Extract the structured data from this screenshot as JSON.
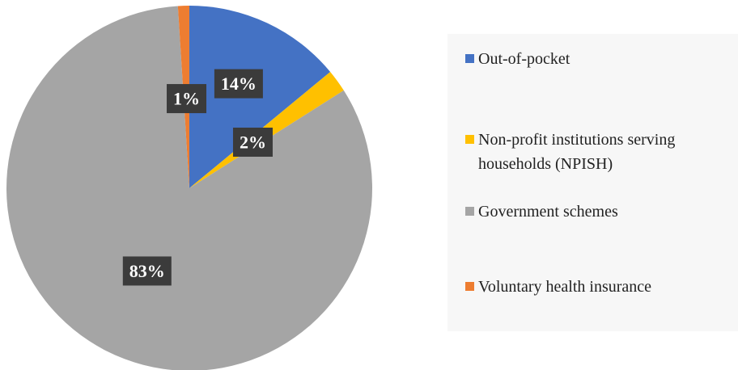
{
  "chart_data": {
    "type": "pie",
    "categories": [
      "Out-of-pocket",
      "Non-profit institutions serving households (NPISH)",
      "Government schemes",
      "Voluntary health insurance"
    ],
    "values": [
      14,
      2,
      83,
      1
    ],
    "value_labels": [
      "14%",
      "2%",
      "83%",
      "1%"
    ],
    "colors": [
      "#4472c4",
      "#ffc000",
      "#a5a5a5",
      "#ed7d31"
    ],
    "legend": "right"
  }
}
